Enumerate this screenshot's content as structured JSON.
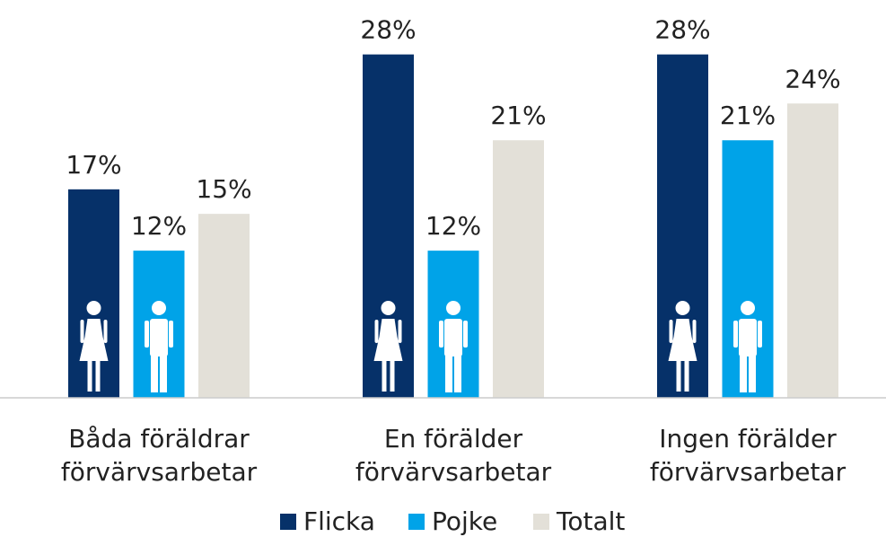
{
  "chart_data": {
    "type": "bar",
    "categories": [
      "Båda föräldrar\nförvärvsarbetar",
      "En förälder\nförvärvsarbetar",
      "Ingen förälder\nförvärvsarbetar"
    ],
    "series": [
      {
        "name": "Flicka",
        "color": "#063169",
        "values": [
          17,
          28,
          28
        ],
        "value_labels": [
          "17%",
          "28%",
          "28%"
        ]
      },
      {
        "name": "Pojke",
        "color": "#00a3e8",
        "values": [
          12,
          12,
          21
        ],
        "value_labels": [
          "12%",
          "12%",
          "21%"
        ]
      },
      {
        "name": "Totalt",
        "color": "#e3e0d8",
        "values": [
          15,
          21,
          24
        ],
        "value_labels": [
          "15%",
          "21%",
          "24%"
        ]
      }
    ],
    "ylim": [
      0,
      32
    ],
    "legend": "bottom"
  }
}
